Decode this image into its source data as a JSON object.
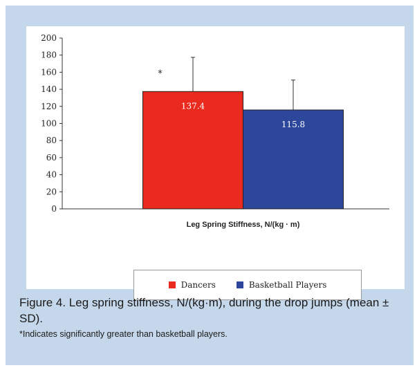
{
  "chart_data": {
    "type": "bar",
    "categories": [
      "Leg Spring Stiffness, N/(kg · m)"
    ],
    "series": [
      {
        "name": "Dancers",
        "values": [
          137.4
        ],
        "error": [
          40
        ],
        "color": "#ea2a1f",
        "data_label": "137.4"
      },
      {
        "name": "Basketball Players",
        "values": [
          115.8
        ],
        "error": [
          35
        ],
        "color": "#2d489a",
        "data_label": "115.8"
      }
    ],
    "ylim": [
      0,
      200
    ],
    "yticks": [
      "0",
      "20",
      "40",
      "60",
      "80",
      "100",
      "120",
      "140",
      "160",
      "180",
      "200"
    ],
    "xlabel": "Leg Spring Stiffness, N/(kg · m)",
    "annotation": "*",
    "legend_position": "bottom",
    "grid": false
  },
  "caption": {
    "main": "Figure 4. Leg spring stiffness, N/(kg·m), during the drop jumps (mean ± SD).",
    "note": "*Indicates significantly greater than basketball players."
  }
}
